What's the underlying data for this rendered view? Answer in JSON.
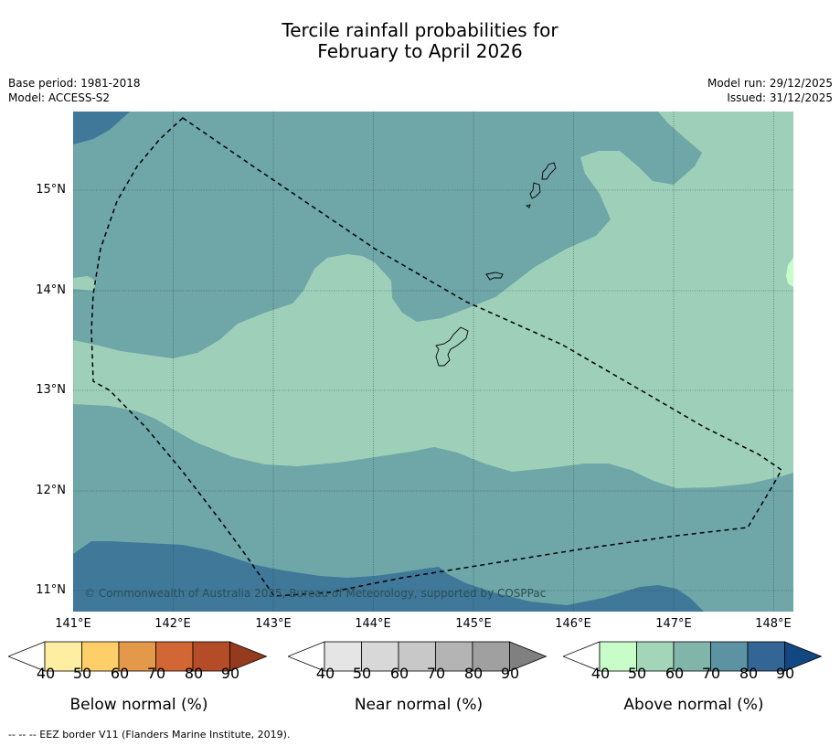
{
  "title": {
    "line1": "Tercile rainfall probabilities for",
    "line2": "February to April 2026"
  },
  "meta": {
    "base_period": "Base period: 1981-2018",
    "model": "Model: ACCESS-S2",
    "model_run": "Model run: 29/12/2025",
    "issued": "Issued: 31/12/2025"
  },
  "map": {
    "lat_labels": [
      "15°N",
      "14°N",
      "13°N",
      "12°N",
      "11°N"
    ],
    "lon_labels": [
      "141°E",
      "142°E",
      "143°E",
      "144°E",
      "145°E",
      "146°E",
      "147°E",
      "148°E"
    ],
    "copyright": "© Commonwealth of Australia 2025, Bureau of Meteorology, supported by COSPPac",
    "colors": {
      "above_50": "#9ed0b9",
      "above_60": "#6fa6a8",
      "above_70": "#6fa6a8",
      "above_80": "#3f7898",
      "above_40_light": "#c8fdc9",
      "gridline": "#2f4f4f",
      "eez_border": "#000000"
    }
  },
  "colorbars": [
    {
      "title": "Below normal (%)",
      "ticks": [
        "40",
        "50",
        "60",
        "70",
        "80",
        "90"
      ],
      "colors": [
        "#ffffff",
        "#fdeea1",
        "#fece69",
        "#e3984a",
        "#d26634",
        "#b34c27",
        "#943a1f"
      ]
    },
    {
      "title": "Near normal (%)",
      "ticks": [
        "40",
        "50",
        "60",
        "70",
        "80",
        "90"
      ],
      "colors": [
        "#ffffff",
        "#e5e5e5",
        "#d8d8d8",
        "#c8c8c8",
        "#b4b4b4",
        "#a0a0a0",
        "#808080"
      ]
    },
    {
      "title": "Above normal (%)",
      "ticks": [
        "40",
        "50",
        "60",
        "70",
        "80",
        "90"
      ],
      "colors": [
        "#ffffff",
        "#c8fdc9",
        "#a3d5b9",
        "#82b5aa",
        "#5b93a2",
        "#336595",
        "#134782"
      ]
    }
  ],
  "footer": "-- -- -- EEZ border V11 (Flanders Marine Institute, 2019)."
}
